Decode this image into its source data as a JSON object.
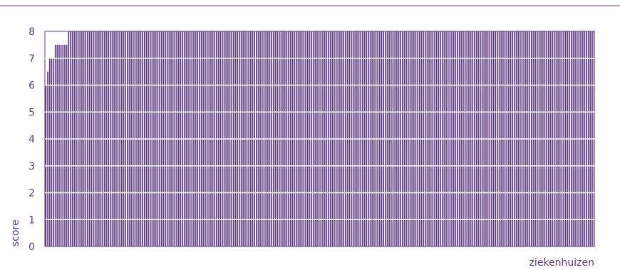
{
  "chart_data": {
    "type": "bar",
    "title": "",
    "xlabel": "ziekenhuizen",
    "ylabel": "score",
    "ylim": [
      0,
      8
    ],
    "yticks": [
      "0",
      "1",
      "2",
      "3",
      "4",
      "5",
      "6",
      "7",
      "8"
    ],
    "grid": true,
    "legend": "none",
    "values": [
      6,
      6.5,
      7,
      7,
      7,
      7.5,
      7.5,
      7.5,
      7.5,
      7.5,
      7.5,
      7.5,
      8,
      8,
      8,
      8,
      8,
      8,
      8,
      8,
      8,
      8,
      8,
      8,
      8,
      8,
      8,
      8,
      8,
      8,
      8,
      8,
      8,
      8,
      8,
      8,
      8,
      8,
      8,
      8,
      8,
      8,
      8,
      8,
      8,
      8,
      8,
      8,
      8,
      8,
      8,
      8,
      8,
      8,
      8,
      8,
      8,
      8,
      8,
      8,
      8,
      8,
      8,
      8,
      8,
      8,
      8,
      8,
      8,
      8,
      8,
      8,
      8,
      8,
      8,
      8,
      8,
      8,
      8,
      8,
      8,
      8,
      8,
      8,
      8,
      8,
      8,
      8,
      8,
      8,
      8,
      8,
      8,
      8,
      8,
      8,
      8,
      8,
      8,
      8,
      8,
      8,
      8,
      8,
      8,
      8,
      8,
      8,
      8,
      8,
      8,
      8,
      8,
      8,
      8,
      8,
      8,
      8,
      8,
      8,
      8,
      8,
      8,
      8,
      8,
      8,
      8,
      8,
      8,
      8,
      8,
      8,
      8,
      8,
      8,
      8,
      8,
      8,
      8,
      8,
      8,
      8,
      8,
      8,
      8,
      8,
      8,
      8,
      8,
      8,
      8,
      8,
      8,
      8,
      8,
      8,
      8,
      8,
      8,
      8,
      8,
      8,
      8,
      8,
      8,
      8,
      8,
      8,
      8,
      8,
      8,
      8,
      8,
      8,
      8,
      8,
      8,
      8,
      8,
      8,
      8,
      8,
      8,
      8,
      8,
      8,
      8,
      8,
      8,
      8,
      8,
      8,
      8,
      8,
      8,
      8,
      8,
      8,
      8,
      8,
      8,
      8,
      8,
      8,
      8,
      8,
      8,
      8,
      8,
      8,
      8,
      8,
      8,
      8,
      8,
      8,
      8,
      8,
      8,
      8,
      8,
      8,
      8,
      8,
      8,
      8,
      8,
      8,
      8,
      8,
      8,
      8,
      8,
      8,
      8,
      8,
      8,
      8,
      8,
      8,
      8,
      8,
      8,
      8,
      8,
      8,
      8,
      8,
      8,
      8,
      8,
      8,
      8,
      8,
      8,
      8,
      8,
      8,
      8,
      8,
      8,
      8,
      8,
      8,
      8,
      8,
      8,
      8,
      8,
      8,
      8,
      8,
      8,
      8,
      8,
      8,
      8,
      8,
      8,
      8,
      8,
      8,
      8,
      8,
      8,
      8,
      8,
      8,
      8,
      8
    ],
    "colors": {
      "bar": "#5e3a83",
      "text": "#5e3a83",
      "grid": "#ffffff",
      "rule": "#5e3a83",
      "axis": "#5e3a83"
    }
  }
}
